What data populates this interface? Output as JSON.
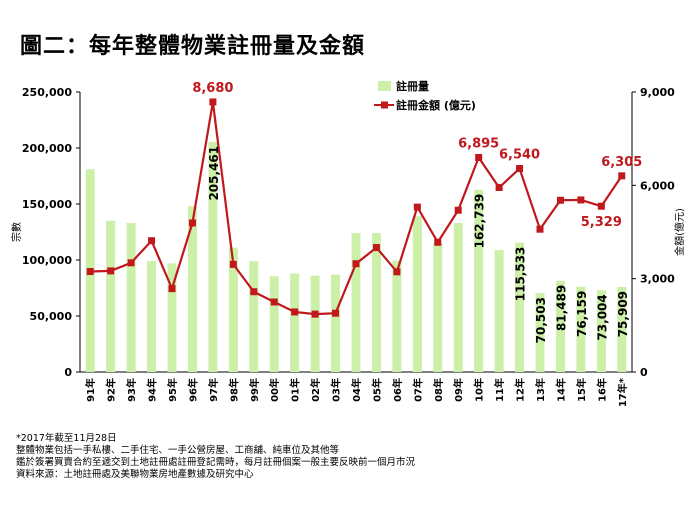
{
  "title": "圖二：每年整體物業註冊量及金額",
  "colors": {
    "bar": "#ccf0a8",
    "line": "#c0181c",
    "label_bar": "#000000",
    "label_line": "#c0181c"
  },
  "chart_data": {
    "type": "bar+line",
    "categories": [
      "91年",
      "92年",
      "93年",
      "94年",
      "95年",
      "96年",
      "97年",
      "98年",
      "99年",
      "00年",
      "01年",
      "02年",
      "03年",
      "04年",
      "05年",
      "06年",
      "07年",
      "08年",
      "09年",
      "10年",
      "11年",
      "12年",
      "13年",
      "14年",
      "15年",
      "16年",
      "17年*"
    ],
    "series": [
      {
        "name": "註冊量",
        "type": "bar",
        "axis": "left",
        "values": [
          181000,
          135000,
          133000,
          99000,
          97000,
          148000,
          205461,
          111000,
          99000,
          85500,
          88000,
          86000,
          87000,
          124000,
          124000,
          99500,
          139000,
          115000,
          133000,
          162739,
          109000,
          115533,
          70503,
          81489,
          76159,
          73004,
          75909
        ]
      },
      {
        "name": "註冊金額 (億元)",
        "type": "line",
        "axis": "right",
        "values": [
          3230,
          3250,
          3510,
          4220,
          2680,
          4790,
          8680,
          3460,
          2580,
          2250,
          1930,
          1860,
          1890,
          3480,
          4000,
          3220,
          5300,
          4170,
          5200,
          6895,
          5930,
          6540,
          4590,
          5520,
          5530,
          5329,
          6305
        ]
      }
    ],
    "bar_labels": [
      {
        "index": 6,
        "text": "205,461"
      },
      {
        "index": 19,
        "text": "162,739"
      },
      {
        "index": 21,
        "text": "115,533"
      },
      {
        "index": 22,
        "text": "70,503"
      },
      {
        "index": 23,
        "text": "81,489"
      },
      {
        "index": 24,
        "text": "76,159"
      },
      {
        "index": 25,
        "text": "73,004"
      },
      {
        "index": 26,
        "text": "75,909"
      }
    ],
    "line_labels": [
      {
        "index": 6,
        "text": "8,680"
      },
      {
        "index": 19,
        "text": "6,895"
      },
      {
        "index": 21,
        "text": "6,540"
      },
      {
        "index": 25,
        "text": "5,329"
      },
      {
        "index": 26,
        "text": "6,305"
      }
    ],
    "y_left": {
      "label": "宗數",
      "min": 0,
      "max": 250000,
      "ticks": [
        "0",
        "50,000",
        "100,000",
        "150,000",
        "200,000",
        "250,000"
      ]
    },
    "y_right": {
      "label": "金額(億元)",
      "min": 0,
      "max": 9000,
      "ticks": [
        "0",
        "3,000",
        "6,000",
        "9,000"
      ]
    },
    "legend": {
      "position": "top-right",
      "bar_label": "註冊量",
      "line_label": "註冊金額 (億元)"
    },
    "grid": false
  },
  "notes": [
    "*2017年截至11月28日",
    "整體物業包括一手私樓、二手住宅、一手公營房屋、工商舖、純車位及其他等",
    "鑑於簽署買賣合約至遞交到土地註冊處註冊登記需時，每月註冊個案一般主要反映前一個月市況",
    "資料來源：土地註冊處及美聯物業房地產數據及研究中心"
  ]
}
